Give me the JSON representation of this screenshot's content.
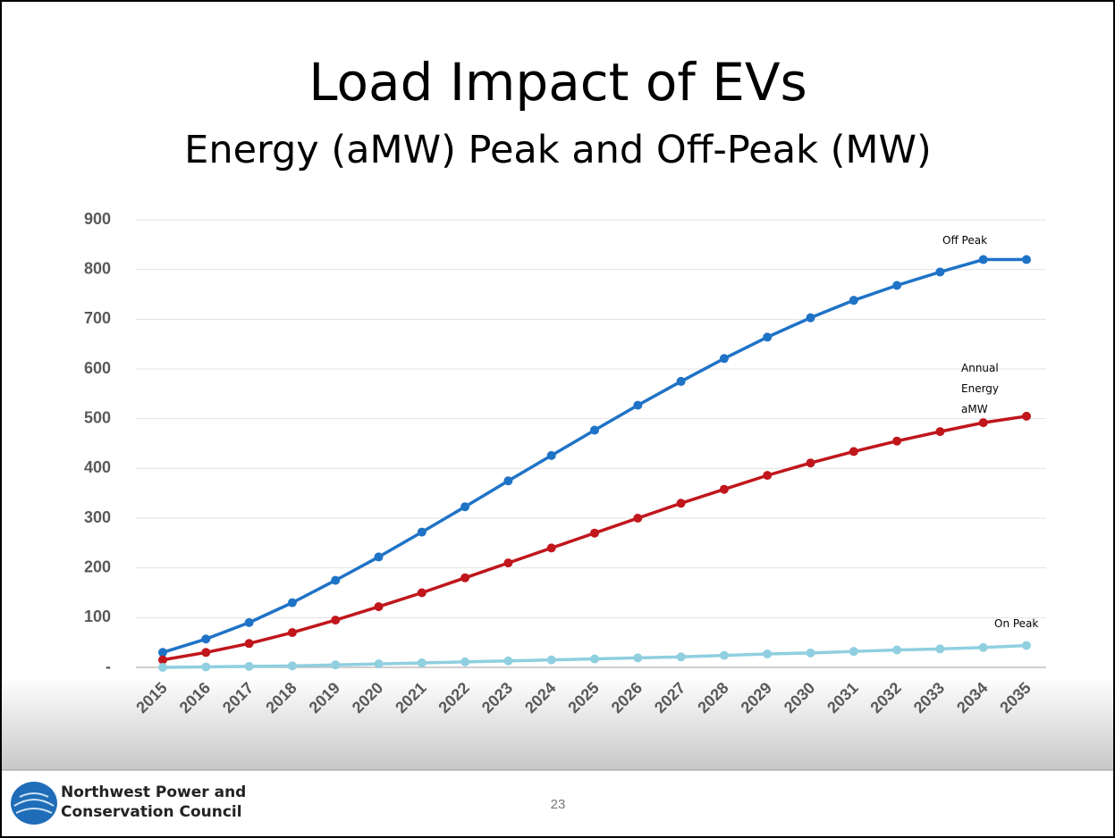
{
  "chart_data": {
    "type": "line",
    "title": "Load Impact of EVs",
    "subtitle": "Energy (aMW) Peak and Off-Peak (MW)",
    "categories": [
      "2015",
      "2016",
      "2017",
      "2018",
      "2019",
      "2020",
      "2021",
      "2022",
      "2023",
      "2024",
      "2025",
      "2026",
      "2027",
      "2028",
      "2029",
      "2030",
      "2031",
      "2032",
      "2033",
      "2034",
      "2035"
    ],
    "series": [
      {
        "name": "Off Peak",
        "color": "#1f73c6",
        "values": [
          30,
          57,
          90,
          130,
          175,
          222,
          272,
          323,
          375,
          426,
          477,
          527,
          575,
          621,
          664,
          703,
          738,
          768,
          795,
          820,
          820
        ]
      },
      {
        "name": "Annual Energy aMW",
        "color": "#c0161c",
        "values": [
          15,
          30,
          48,
          70,
          95,
          122,
          150,
          180,
          210,
          240,
          270,
          300,
          330,
          358,
          386,
          411,
          434,
          455,
          474,
          492,
          505
        ]
      },
      {
        "name": "On Peak",
        "color": "#8fcfe0",
        "values": [
          0,
          1,
          2,
          3,
          5,
          7,
          9,
          11,
          13,
          15,
          17,
          19,
          21,
          24,
          27,
          29,
          32,
          35,
          37,
          40,
          44
        ]
      }
    ],
    "ylim": [
      0,
      900
    ],
    "yticks": [
      {
        "value": 0,
        "label": "-"
      },
      100,
      200,
      300,
      400,
      500,
      600,
      700,
      800,
      900
    ],
    "grid": true
  },
  "footer": {
    "org_lines": [
      "Northwest Power and",
      "Conservation Council"
    ],
    "page_number": "23"
  }
}
